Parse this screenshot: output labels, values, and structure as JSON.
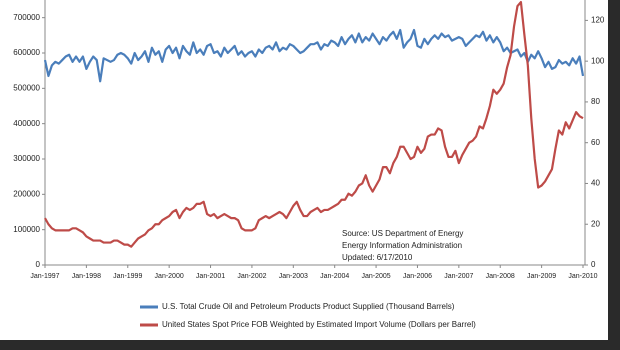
{
  "chart_data": {
    "type": "line",
    "categories": [
      "Jan-1997",
      null,
      null,
      null,
      null,
      null,
      null,
      null,
      null,
      null,
      null,
      null,
      "Jan-1998",
      null,
      null,
      null,
      null,
      null,
      null,
      null,
      null,
      null,
      null,
      null,
      "Jan-1999",
      null,
      null,
      null,
      null,
      null,
      null,
      null,
      null,
      null,
      null,
      null,
      "Jan-2000",
      null,
      null,
      null,
      null,
      null,
      null,
      null,
      null,
      null,
      null,
      null,
      "Jan-2001",
      null,
      null,
      null,
      null,
      null,
      null,
      null,
      null,
      null,
      null,
      null,
      "Jan-2002",
      null,
      null,
      null,
      null,
      null,
      null,
      null,
      null,
      null,
      null,
      null,
      "Jan-2003",
      null,
      null,
      null,
      null,
      null,
      null,
      null,
      null,
      null,
      null,
      null,
      "Jan-2004",
      null,
      null,
      null,
      null,
      null,
      null,
      null,
      null,
      null,
      null,
      null,
      "Jan-2005",
      null,
      null,
      null,
      null,
      null,
      null,
      null,
      null,
      null,
      null,
      null,
      "Jan-2006",
      null,
      null,
      null,
      null,
      null,
      null,
      null,
      null,
      null,
      null,
      null,
      "Jan-2007",
      null,
      null,
      null,
      null,
      null,
      null,
      null,
      null,
      null,
      null,
      null,
      "Jan-2008",
      null,
      null,
      null,
      null,
      null,
      null,
      null,
      null,
      null,
      null,
      null,
      "Jan-2009",
      null,
      null,
      null,
      null,
      null,
      null,
      null,
      null,
      null,
      null,
      null,
      "Jan-2010"
    ],
    "series": [
      {
        "name": "U.S. Total  Crude Oil and  Petroleum Products Product Supplied (Thousand Barrels)",
        "color": "#4a7ebb",
        "values": [
          580000,
          535000,
          565000,
          575000,
          570000,
          580000,
          590000,
          595000,
          575000,
          590000,
          575000,
          590000,
          555000,
          575000,
          590000,
          580000,
          520000,
          585000,
          580000,
          575000,
          580000,
          595000,
          600000,
          595000,
          585000,
          570000,
          600000,
          580000,
          590000,
          605000,
          575000,
          615000,
          595000,
          605000,
          575000,
          610000,
          620000,
          600000,
          615000,
          585000,
          620000,
          605000,
          595000,
          630000,
          600000,
          610000,
          595000,
          620000,
          625000,
          600000,
          605000,
          590000,
          615000,
          600000,
          610000,
          620000,
          595000,
          605000,
          590000,
          600000,
          605000,
          590000,
          610000,
          600000,
          615000,
          620000,
          610000,
          630000,
          605000,
          615000,
          610000,
          625000,
          620000,
          610000,
          600000,
          605000,
          615000,
          625000,
          625000,
          630000,
          610000,
          625000,
          620000,
          635000,
          630000,
          620000,
          645000,
          625000,
          640000,
          650000,
          630000,
          655000,
          630000,
          645000,
          635000,
          655000,
          640000,
          625000,
          645000,
          635000,
          650000,
          660000,
          640000,
          665000,
          615000,
          630000,
          640000,
          665000,
          620000,
          615000,
          640000,
          625000,
          640000,
          650000,
          640000,
          655000,
          645000,
          650000,
          635000,
          640000,
          645000,
          640000,
          620000,
          630000,
          640000,
          650000,
          645000,
          660000,
          635000,
          650000,
          630000,
          645000,
          630000,
          605000,
          615000,
          600000,
          605000,
          610000,
          590000,
          600000,
          575000,
          595000,
          585000,
          605000,
          585000,
          560000,
          575000,
          555000,
          560000,
          580000,
          570000,
          575000,
          565000,
          585000,
          570000,
          590000,
          535000
        ]
      },
      {
        "name": "United States Spot Price FOB Weighted by Estimated  Import Volume (Dollars per Barrel)",
        "color": "#be4b48",
        "axis": "y2",
        "values": [
          23,
          20,
          18,
          17,
          17,
          17,
          17,
          17,
          18,
          18,
          17,
          16,
          14,
          13,
          12,
          12,
          12,
          11,
          11,
          11,
          12,
          12,
          11,
          10,
          10,
          9,
          11,
          13,
          14,
          15,
          17,
          18,
          20,
          20,
          22,
          23,
          24,
          26,
          27,
          23,
          26,
          28,
          27,
          28,
          30,
          30,
          31,
          25,
          24,
          25,
          23,
          24,
          25,
          24,
          23,
          23,
          22,
          18,
          17,
          17,
          17,
          18,
          22,
          23,
          24,
          23,
          24,
          25,
          26,
          25,
          23,
          26,
          29,
          31,
          27,
          24,
          24,
          26,
          27,
          28,
          26,
          27,
          27,
          28,
          29,
          30,
          32,
          32,
          35,
          34,
          36,
          39,
          40,
          44,
          39,
          36,
          39,
          42,
          48,
          48,
          45,
          50,
          53,
          58,
          58,
          55,
          52,
          53,
          58,
          55,
          57,
          63,
          64,
          64,
          67,
          66,
          58,
          53,
          53,
          56,
          50,
          54,
          57,
          60,
          61,
          63,
          68,
          67,
          72,
          78,
          86,
          84,
          86,
          89,
          97,
          103,
          117,
          127,
          129,
          113,
          98,
          72,
          52,
          38,
          39,
          41,
          44,
          47,
          57,
          66,
          64,
          70,
          67,
          71,
          75,
          73,
          72
        ]
      }
    ],
    "ylim": [
      0,
      750000
    ],
    "yticks": [
      0,
      100000,
      200000,
      300000,
      400000,
      500000,
      600000,
      700000
    ],
    "y2lim": [
      0,
      130
    ],
    "y2ticks": [
      0,
      20,
      40,
      60,
      80,
      100,
      120
    ],
    "annotation": [
      "Source: US Department of Energy",
      "Energy Information Administration",
      "Updated:   6/17/2010"
    ],
    "legend": "bottom"
  }
}
